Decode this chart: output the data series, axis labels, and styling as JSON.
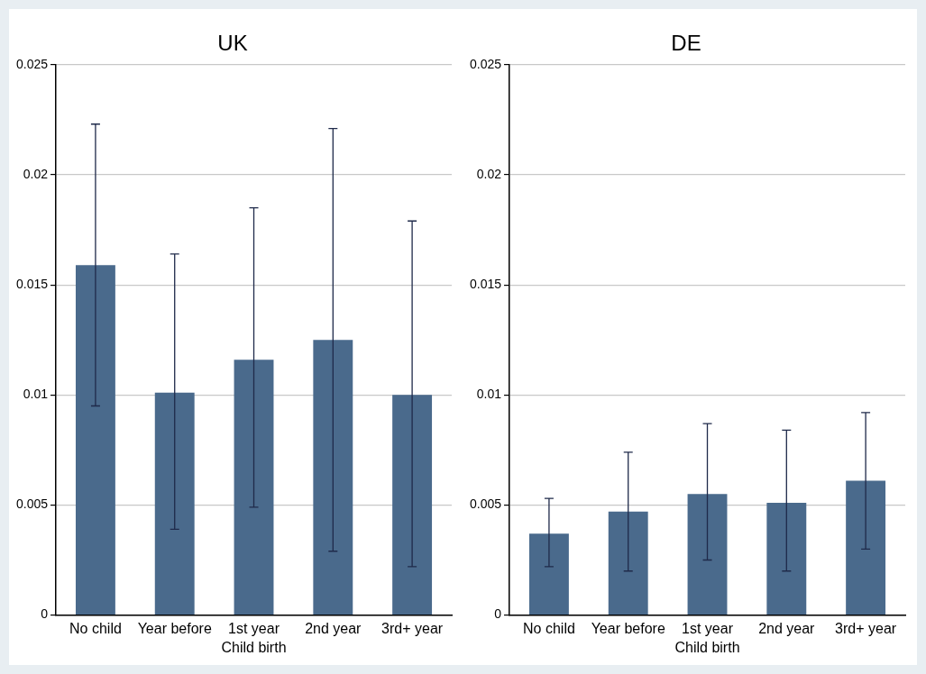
{
  "chart_data": [
    {
      "type": "bar",
      "title": "UK",
      "xlabel": "Child birth",
      "categories": [
        "No child",
        "Year before",
        "1st year",
        "2nd year",
        "3rd+ year"
      ],
      "values": [
        0.0159,
        0.0101,
        0.0116,
        0.0125,
        0.01
      ],
      "color": "#4a6a8c",
      "errors": [
        [
          0.0095,
          0.0223
        ],
        [
          0.0039,
          0.0164
        ],
        [
          0.0049,
          0.0185
        ],
        [
          0.0029,
          0.0221
        ],
        [
          0.0022,
          0.0179
        ]
      ],
      "ylim": [
        0,
        0.025
      ],
      "yticks": [
        0,
        0.005,
        0.01,
        0.015,
        0.02,
        0.025
      ],
      "grid": "y"
    },
    {
      "type": "bar",
      "title": "DE",
      "xlabel": "Child birth",
      "categories": [
        "No child",
        "Year before",
        "1st year",
        "2nd year",
        "3rd+ year"
      ],
      "values": [
        0.0037,
        0.0047,
        0.0055,
        0.0051,
        0.0061
      ],
      "color": "#4a6a8c",
      "errors": [
        [
          0.0022,
          0.0053
        ],
        [
          0.002,
          0.0074
        ],
        [
          0.0025,
          0.0087
        ],
        [
          0.002,
          0.0084
        ],
        [
          0.003,
          0.0092
        ]
      ],
      "ylim": [
        0,
        0.025
      ],
      "yticks": [
        0,
        0.005,
        0.01,
        0.015,
        0.02,
        0.025
      ],
      "grid": "y"
    }
  ]
}
